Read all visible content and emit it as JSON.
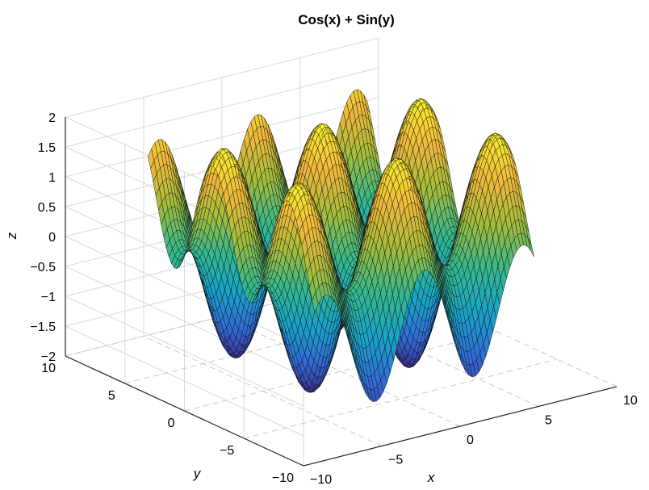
{
  "chart_data": {
    "type": "surface",
    "title": "Cos(x) + Sin(y)",
    "function": "z = cos(x) + sin(y)",
    "xlabel": "x",
    "ylabel": "y",
    "zlabel": "z",
    "xlim": [
      -10,
      10
    ],
    "ylim": [
      -10,
      10
    ],
    "zlim": [
      -2,
      2
    ],
    "x_ticks": [
      "−10",
      "−5",
      "0",
      "5",
      "10"
    ],
    "y_ticks": [
      "−10",
      "−5",
      "0",
      "5",
      "10"
    ],
    "z_ticks": [
      "−2",
      "−1.5",
      "−1",
      "−0.5",
      "0",
      "0.5",
      "1",
      "1.5",
      "2"
    ],
    "x_tick_values": [
      -10,
      -5,
      0,
      5,
      10
    ],
    "y_tick_values": [
      -10,
      -5,
      0,
      5,
      10
    ],
    "z_tick_values": [
      -2,
      -1.5,
      -1,
      -0.5,
      0,
      0.5,
      1,
      1.5,
      2
    ],
    "domain_x": [
      -7,
      7
    ],
    "domain_y": [
      -7,
      7
    ],
    "grid": true,
    "colormap": [
      "#3f2d8f",
      "#2f6fd9",
      "#17a6c9",
      "#35b98c",
      "#a3bd3a",
      "#f0b83b",
      "#f9f02c"
    ]
  }
}
